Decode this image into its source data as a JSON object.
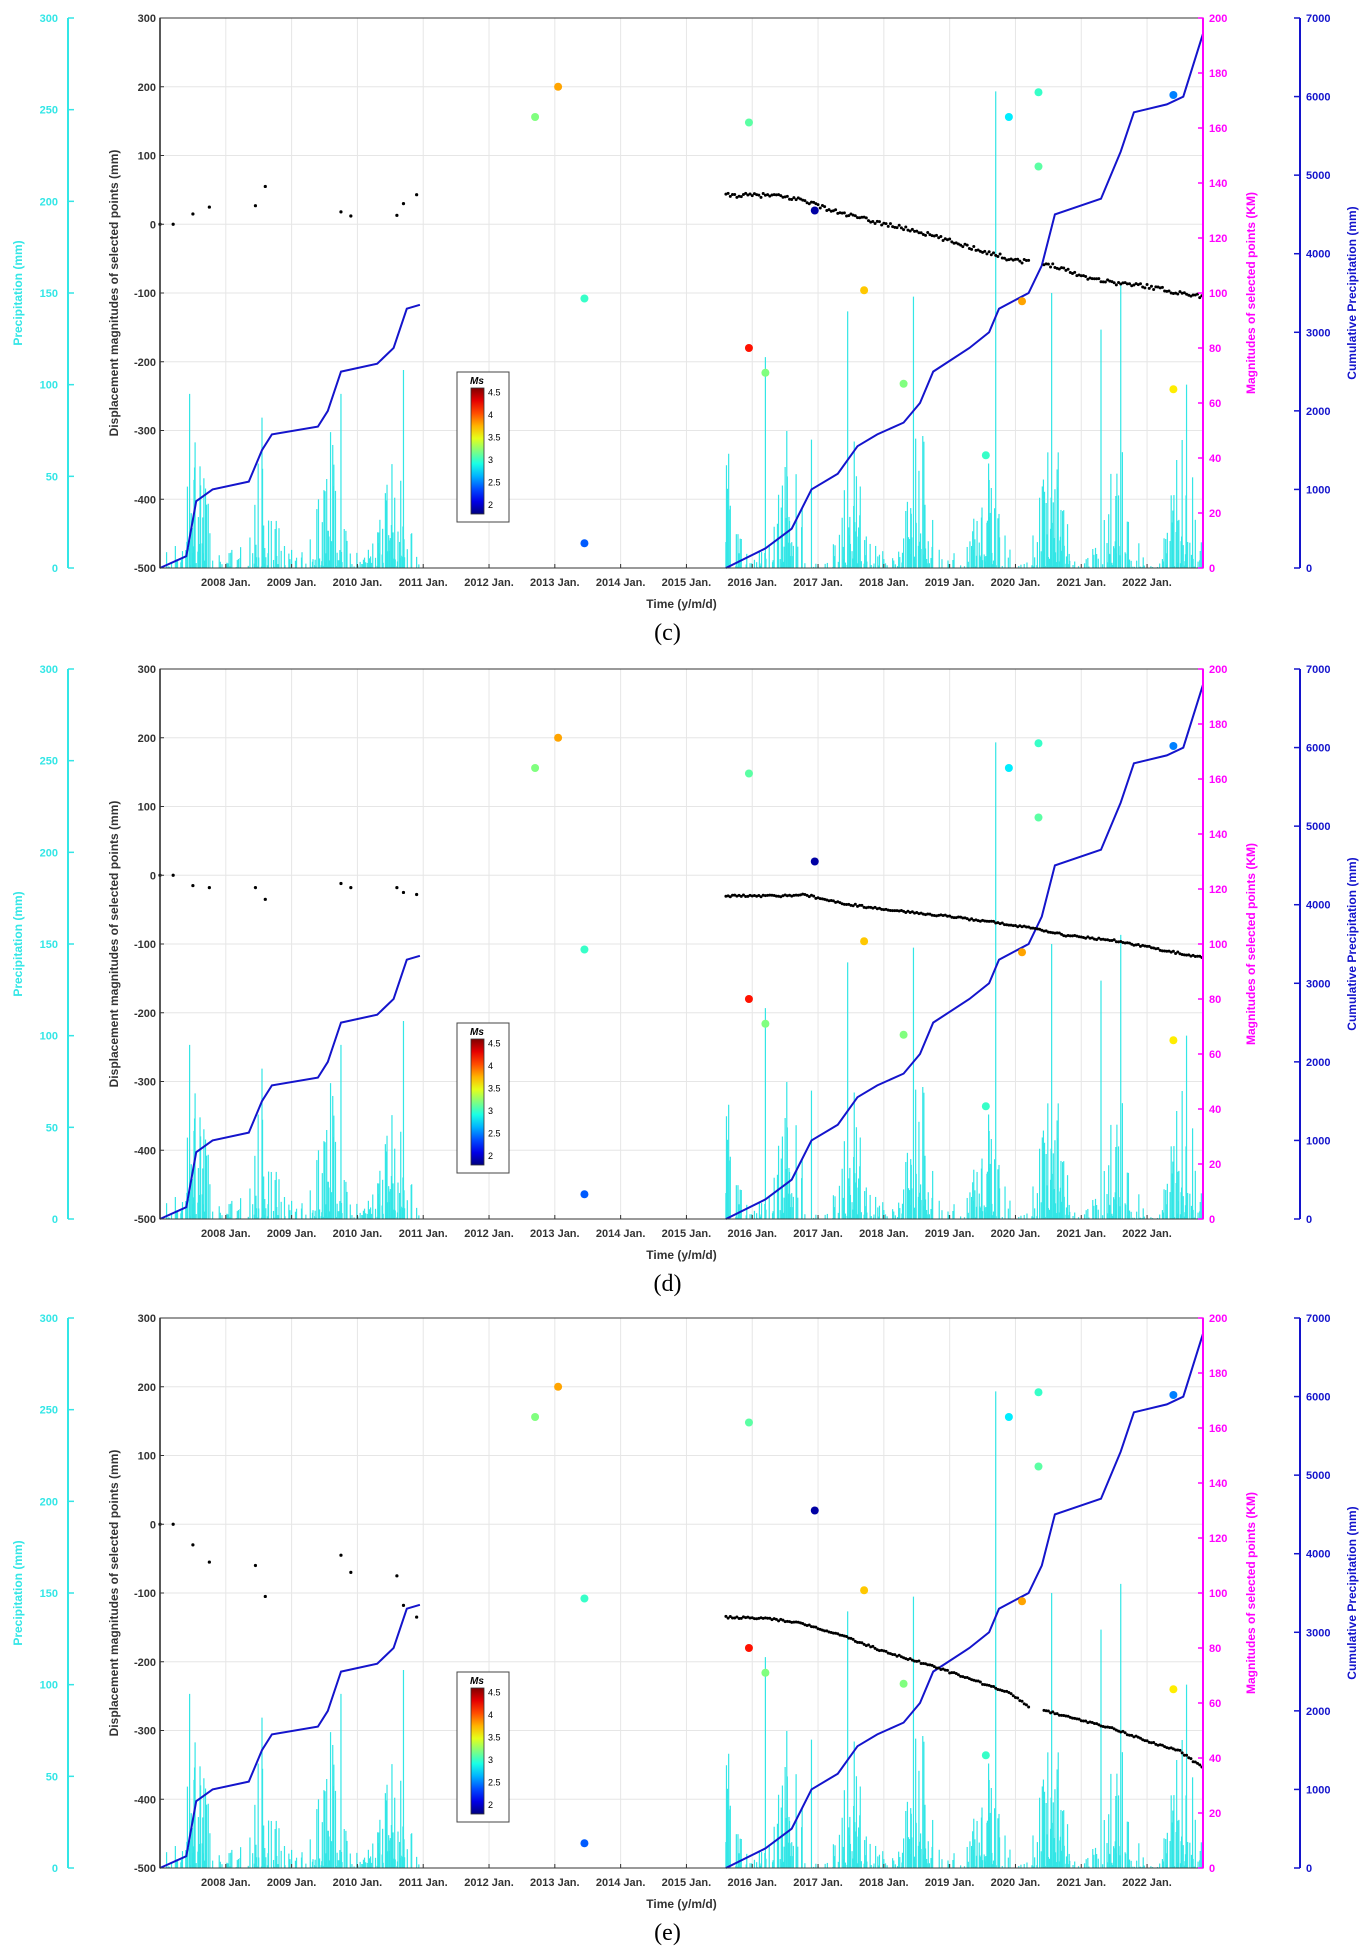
{
  "figure": {
    "panels": [
      "(c)",
      "(d)",
      "(e)"
    ],
    "colors": {
      "precipitation": "#33e6e6",
      "displacement_axis": "#222222",
      "magnitude": "#ff00ff",
      "cumulative": "#1414cc",
      "grid": "#e6e6e6"
    }
  },
  "chart_data": [
    {
      "type": "composite",
      "panel_label": "(c)",
      "xlabel": "Time (y/m/d)",
      "x_tick_labels": [
        "2008 Jan.",
        "2009 Jan.",
        "2010 Jan.",
        "2011 Jan.",
        "2012 Jan.",
        "2013 Jan.",
        "2014 Jan.",
        "2015 Jan.",
        "2016 Jan.",
        "2017 Jan.",
        "2018 Jan.",
        "2019 Jan.",
        "2020 Jan.",
        "2021 Jan.",
        "2022 Jan."
      ],
      "xlim": [
        2007.0,
        2022.85
      ],
      "axes": {
        "precipitation": {
          "label": "Precipitation (mm)",
          "ylim": [
            0,
            300
          ],
          "ticks": [
            "0",
            "50",
            "100",
            "150",
            "200",
            "250",
            "300"
          ]
        },
        "displacement": {
          "label": "Displacement magnitudes of selected points (mm)",
          "ylim": [
            -500,
            300
          ],
          "ticks": [
            "-500",
            "-400",
            "-300",
            "-200",
            "-100",
            "0",
            "100",
            "200",
            "300"
          ]
        },
        "magnitude": {
          "label": "Magnitudes of selected points (KM)",
          "ylim": [
            0,
            200
          ],
          "ticks": [
            "0",
            "20",
            "40",
            "60",
            "80",
            "100",
            "120",
            "140",
            "160",
            "180",
            "200"
          ]
        },
        "cumulative": {
          "label": "Cumulative Precipitation (mm)",
          "ylim": [
            0,
            7000
          ],
          "ticks": [
            "0",
            "1000",
            "2000",
            "3000",
            "4000",
            "5000",
            "6000",
            "7000"
          ]
        }
      },
      "colorbar": {
        "title": "Ms",
        "min": 1.8,
        "max": 4.6,
        "tick_labels": [
          "2",
          "2.5",
          "3",
          "3.5",
          "4",
          "4.5"
        ]
      },
      "displacement_series": {
        "early_t": [
          2007.0,
          2007.2,
          2007.5,
          2007.75,
          2008.45,
          2008.6,
          2009.75,
          2009.9,
          2010.6,
          2010.7,
          2010.9
        ],
        "early_v": [
          0,
          0,
          15,
          25,
          27,
          55,
          18,
          12,
          13,
          30,
          43
        ],
        "late_start": 2015.6,
        "late_end": 2022.85,
        "late_anchor_t": [
          2015.6,
          2016.3,
          2016.8,
          2017.2,
          2017.8,
          2018.5,
          2019.2,
          2019.9,
          2020.2,
          2020.6,
          2021.0,
          2021.5,
          2022.0,
          2022.5,
          2022.85
        ],
        "late_anchor_v": [
          42,
          42,
          35,
          20,
          5,
          -10,
          -30,
          -50,
          -55,
          -60,
          -75,
          -85,
          -90,
          -100,
          -105
        ],
        "gap": [
          2020.2,
          2020.42
        ],
        "noise": 6
      },
      "earthquakes": [
        {
          "t": 2012.7,
          "km": 164,
          "ms": 3.2
        },
        {
          "t": 2013.05,
          "km": 175,
          "ms": 3.8
        },
        {
          "t": 2013.45,
          "km": 98,
          "ms": 3.0
        },
        {
          "t": 2013.45,
          "km": 9,
          "ms": 2.4
        },
        {
          "t": 2015.95,
          "km": 80,
          "ms": 4.2
        },
        {
          "t": 2015.95,
          "km": 162,
          "ms": 3.1
        },
        {
          "t": 2016.2,
          "km": 71,
          "ms": 3.2
        },
        {
          "t": 2016.95,
          "km": 130,
          "ms": 1.9
        },
        {
          "t": 2017.7,
          "km": 101,
          "ms": 3.7
        },
        {
          "t": 2018.3,
          "km": 67,
          "ms": 3.2
        },
        {
          "t": 2019.55,
          "km": 41,
          "ms": 3.0
        },
        {
          "t": 2019.9,
          "km": 164,
          "ms": 2.8
        },
        {
          "t": 2020.1,
          "km": 97,
          "ms": 3.8
        },
        {
          "t": 2020.35,
          "km": 146,
          "ms": 3.1
        },
        {
          "t": 2020.35,
          "km": 173,
          "ms": 3.0
        },
        {
          "t": 2022.4,
          "km": 65,
          "ms": 3.6
        },
        {
          "t": 2022.4,
          "km": 172,
          "ms": 2.5
        }
      ]
    },
    {
      "type": "composite",
      "panel_label": "(d)",
      "xlabel": "Time (y/m/d)",
      "x_tick_labels": [
        "2008 Jan.",
        "2009 Jan.",
        "2010 Jan.",
        "2011 Jan.",
        "2012 Jan.",
        "2013 Jan.",
        "2014 Jan.",
        "2015 Jan.",
        "2016 Jan.",
        "2017 Jan.",
        "2018 Jan.",
        "2019 Jan.",
        "2020 Jan.",
        "2021 Jan.",
        "2022 Jan."
      ],
      "xlim": [
        2007.0,
        2022.85
      ],
      "axes": {
        "precipitation": {
          "label": "Precipitation (mm)",
          "ylim": [
            0,
            300
          ],
          "ticks": [
            "0",
            "50",
            "100",
            "150",
            "200",
            "250",
            "300"
          ]
        },
        "displacement": {
          "label": "Displacement magnitudes of selected points (mm)",
          "ylim": [
            -500,
            300
          ],
          "ticks": [
            "-500",
            "-400",
            "-300",
            "-200",
            "-100",
            "0",
            "100",
            "200",
            "300"
          ]
        },
        "magnitude": {
          "label": "Magnitudes of selected points (KM)",
          "ylim": [
            0,
            200
          ],
          "ticks": [
            "0",
            "20",
            "40",
            "60",
            "80",
            "100",
            "120",
            "140",
            "160",
            "180",
            "200"
          ]
        },
        "cumulative": {
          "label": "Cumulative Precipitation (mm)",
          "ylim": [
            0,
            7000
          ],
          "ticks": [
            "0",
            "1000",
            "2000",
            "3000",
            "4000",
            "5000",
            "6000",
            "7000"
          ]
        }
      },
      "colorbar": {
        "title": "Ms",
        "min": 1.8,
        "max": 4.6,
        "tick_labels": [
          "2",
          "2.5",
          "3",
          "3.5",
          "4",
          "4.5"
        ]
      },
      "displacement_series": {
        "early_t": [
          2007.0,
          2007.2,
          2007.5,
          2007.75,
          2008.45,
          2008.6,
          2009.75,
          2009.9,
          2010.6,
          2010.7,
          2010.9
        ],
        "early_v": [
          0,
          0,
          -15,
          -18,
          -18,
          -35,
          -12,
          -18,
          -18,
          -25,
          -28
        ],
        "late_start": 2015.6,
        "late_end": 2022.85,
        "late_anchor_t": [
          2015.6,
          2016.5,
          2016.8,
          2017.2,
          2018.0,
          2019.0,
          2019.8,
          2020.3,
          2020.8,
          2021.5,
          2022.2,
          2022.85
        ],
        "late_anchor_v": [
          -30,
          -30,
          -28,
          -38,
          -50,
          -60,
          -70,
          -78,
          -88,
          -95,
          -108,
          -120
        ],
        "gap": null,
        "noise": 3
      },
      "earthquakes": [
        {
          "t": 2012.7,
          "km": 164,
          "ms": 3.2
        },
        {
          "t": 2013.05,
          "km": 175,
          "ms": 3.8
        },
        {
          "t": 2013.45,
          "km": 98,
          "ms": 3.0
        },
        {
          "t": 2013.45,
          "km": 9,
          "ms": 2.4
        },
        {
          "t": 2015.95,
          "km": 80,
          "ms": 4.2
        },
        {
          "t": 2015.95,
          "km": 162,
          "ms": 3.1
        },
        {
          "t": 2016.2,
          "km": 71,
          "ms": 3.2
        },
        {
          "t": 2016.95,
          "km": 130,
          "ms": 1.9
        },
        {
          "t": 2017.7,
          "km": 101,
          "ms": 3.7
        },
        {
          "t": 2018.3,
          "km": 67,
          "ms": 3.2
        },
        {
          "t": 2019.55,
          "km": 41,
          "ms": 3.0
        },
        {
          "t": 2019.9,
          "km": 164,
          "ms": 2.8
        },
        {
          "t": 2020.1,
          "km": 97,
          "ms": 3.8
        },
        {
          "t": 2020.35,
          "km": 146,
          "ms": 3.1
        },
        {
          "t": 2020.35,
          "km": 173,
          "ms": 3.0
        },
        {
          "t": 2022.4,
          "km": 65,
          "ms": 3.6
        },
        {
          "t": 2022.4,
          "km": 172,
          "ms": 2.5
        }
      ]
    },
    {
      "type": "composite",
      "panel_label": "(e)",
      "xlabel": "Time (y/m/d)",
      "x_tick_labels": [
        "2008 Jan.",
        "2009 Jan.",
        "2010 Jan.",
        "2011 Jan.",
        "2012 Jan.",
        "2013 Jan.",
        "2014 Jan.",
        "2015 Jan.",
        "2016 Jan.",
        "2017 Jan.",
        "2018 Jan.",
        "2019 Jan.",
        "2020 Jan.",
        "2021 Jan.",
        "2022 Jan."
      ],
      "xlim": [
        2007.0,
        2022.85
      ],
      "axes": {
        "precipitation": {
          "label": "Precipitation (mm)",
          "ylim": [
            0,
            300
          ],
          "ticks": [
            "0",
            "50",
            "100",
            "150",
            "200",
            "250",
            "300"
          ]
        },
        "displacement": {
          "label": "Displacement magnitudes of selected points (mm)",
          "ylim": [
            -500,
            300
          ],
          "ticks": [
            "-500",
            "-400",
            "-300",
            "-200",
            "-100",
            "0",
            "100",
            "200",
            "300"
          ]
        },
        "magnitude": {
          "label": "Magnitudes of selected points (KM)",
          "ylim": [
            0,
            200
          ],
          "ticks": [
            "0",
            "20",
            "40",
            "60",
            "80",
            "100",
            "120",
            "140",
            "160",
            "180",
            "200"
          ]
        },
        "cumulative": {
          "label": "Cumulative Precipitation (mm)",
          "ylim": [
            0,
            7000
          ],
          "ticks": [
            "0",
            "1000",
            "2000",
            "3000",
            "4000",
            "5000",
            "6000",
            "7000"
          ]
        }
      },
      "colorbar": {
        "title": "Ms",
        "min": 1.8,
        "max": 4.6,
        "tick_labels": [
          "2",
          "2.5",
          "3",
          "3.5",
          "4",
          "4.5"
        ]
      },
      "displacement_series": {
        "early_t": [
          2007.0,
          2007.2,
          2007.5,
          2007.75,
          2008.45,
          2008.6,
          2009.75,
          2009.9,
          2010.6,
          2010.7,
          2010.9
        ],
        "early_v": [
          0,
          0,
          -30,
          -55,
          -60,
          -105,
          -45,
          -70,
          -75,
          -118,
          -135
        ],
        "late_start": 2015.6,
        "late_end": 2022.85,
        "late_anchor_t": [
          2015.6,
          2016.3,
          2016.8,
          2017.3,
          2018.0,
          2018.7,
          2019.3,
          2019.9,
          2020.2,
          2020.4,
          2021.0,
          2021.5,
          2022.0,
          2022.5,
          2022.85
        ],
        "late_anchor_v": [
          -135,
          -138,
          -145,
          -160,
          -185,
          -205,
          -225,
          -245,
          -265,
          -270,
          -285,
          -298,
          -315,
          -330,
          -355
        ],
        "gap": [
          2020.2,
          2020.4
        ],
        "noise": 3
      },
      "earthquakes": [
        {
          "t": 2012.7,
          "km": 164,
          "ms": 3.2
        },
        {
          "t": 2013.05,
          "km": 175,
          "ms": 3.8
        },
        {
          "t": 2013.45,
          "km": 98,
          "ms": 3.0
        },
        {
          "t": 2013.45,
          "km": 9,
          "ms": 2.4
        },
        {
          "t": 2015.95,
          "km": 80,
          "ms": 4.2
        },
        {
          "t": 2015.95,
          "km": 162,
          "ms": 3.1
        },
        {
          "t": 2016.2,
          "km": 71,
          "ms": 3.2
        },
        {
          "t": 2016.95,
          "km": 130,
          "ms": 1.9
        },
        {
          "t": 2017.7,
          "km": 101,
          "ms": 3.7
        },
        {
          "t": 2018.3,
          "km": 67,
          "ms": 3.2
        },
        {
          "t": 2019.55,
          "km": 41,
          "ms": 3.0
        },
        {
          "t": 2019.9,
          "km": 164,
          "ms": 2.8
        },
        {
          "t": 2020.1,
          "km": 97,
          "ms": 3.8
        },
        {
          "t": 2020.35,
          "km": 146,
          "ms": 3.1
        },
        {
          "t": 2020.35,
          "km": 173,
          "ms": 3.0
        },
        {
          "t": 2022.4,
          "km": 65,
          "ms": 3.6
        },
        {
          "t": 2022.4,
          "km": 172,
          "ms": 2.5
        }
      ]
    }
  ],
  "shared_series": {
    "precipitation_daily_note": "daily precipitation bars (mm); record gap 2011-2015",
    "precipitation_periods": [
      [
        2007.0,
        2010.95
      ],
      [
        2015.6,
        2022.85
      ]
    ],
    "precipitation_peaks": [
      {
        "t": 2007.45,
        "v": 95
      },
      {
        "t": 2008.55,
        "v": 82
      },
      {
        "t": 2009.75,
        "v": 95
      },
      {
        "t": 2010.7,
        "v": 108
      },
      {
        "t": 2016.2,
        "v": 115
      },
      {
        "t": 2016.9,
        "v": 70
      },
      {
        "t": 2017.45,
        "v": 140
      },
      {
        "t": 2018.45,
        "v": 148
      },
      {
        "t": 2019.7,
        "v": 260
      },
      {
        "t": 2020.55,
        "v": 150
      },
      {
        "t": 2021.3,
        "v": 130
      },
      {
        "t": 2021.6,
        "v": 155
      },
      {
        "t": 2022.6,
        "v": 100
      }
    ],
    "cumulative_t": [
      2007.0,
      2007.4,
      2007.55,
      2007.8,
      2008.35,
      2008.55,
      2008.7,
      2009.4,
      2009.55,
      2009.75,
      2010.3,
      2010.55,
      2010.75,
      2010.95,
      2015.6,
      2016.2,
      2016.6,
      2016.9,
      2017.3,
      2017.6,
      2017.9,
      2018.3,
      2018.55,
      2018.75,
      2019.3,
      2019.6,
      2019.75,
      2020.2,
      2020.4,
      2020.6,
      2021.3,
      2021.6,
      2021.8,
      2022.3,
      2022.55,
      2022.85
    ],
    "cumulative_v": [
      0,
      150,
      850,
      1000,
      1100,
      1500,
      1700,
      1800,
      2000,
      2500,
      2600,
      2800,
      3300,
      3350,
      0,
      250,
      500,
      1000,
      1200,
      1550,
      1700,
      1850,
      2100,
      2500,
      2800,
      3000,
      3300,
      3500,
      3850,
      4500,
      4700,
      5300,
      5800,
      5900,
      6000,
      6800
    ]
  }
}
